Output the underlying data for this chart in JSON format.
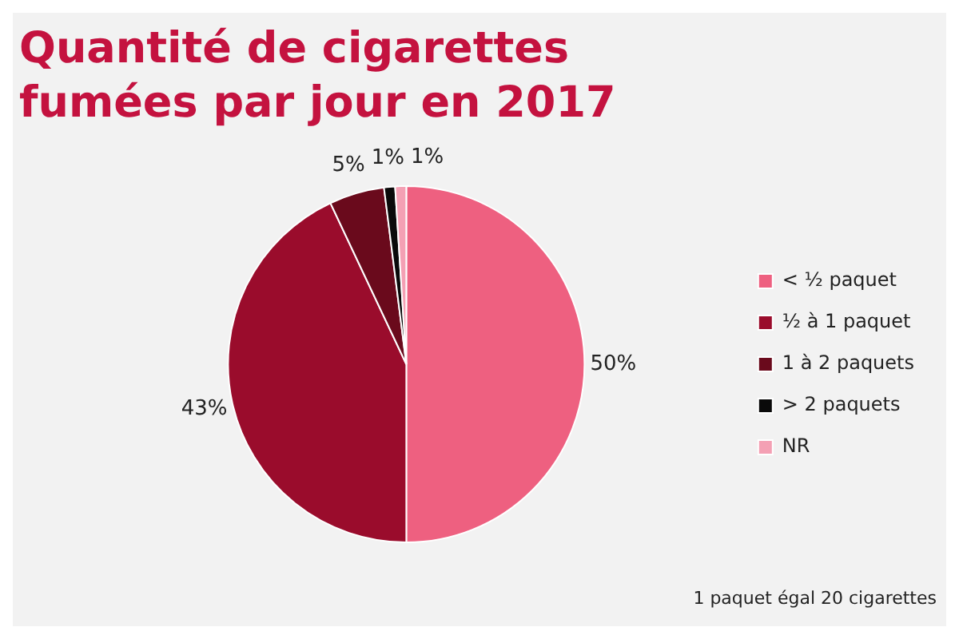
{
  "chart_data": {
    "type": "pie",
    "title": "Quantité de cigarettes fumées par jour en 2017",
    "categories": [
      "< ½ paquet",
      "½ à 1 paquet",
      "1 à 2 paquets",
      "> 2 paquets",
      "NR"
    ],
    "values": [
      50,
      43,
      5,
      1,
      1
    ],
    "colors": [
      "#ee6080",
      "#9a0c2c",
      "#6a0a1c",
      "#0a0a0a",
      "#f4a0b4"
    ],
    "value_labels": [
      "50%",
      "43%",
      "5%",
      "1%",
      "1%"
    ],
    "legend": "right",
    "annotations": [
      "1 paquet égal 20 cigarettes"
    ]
  }
}
